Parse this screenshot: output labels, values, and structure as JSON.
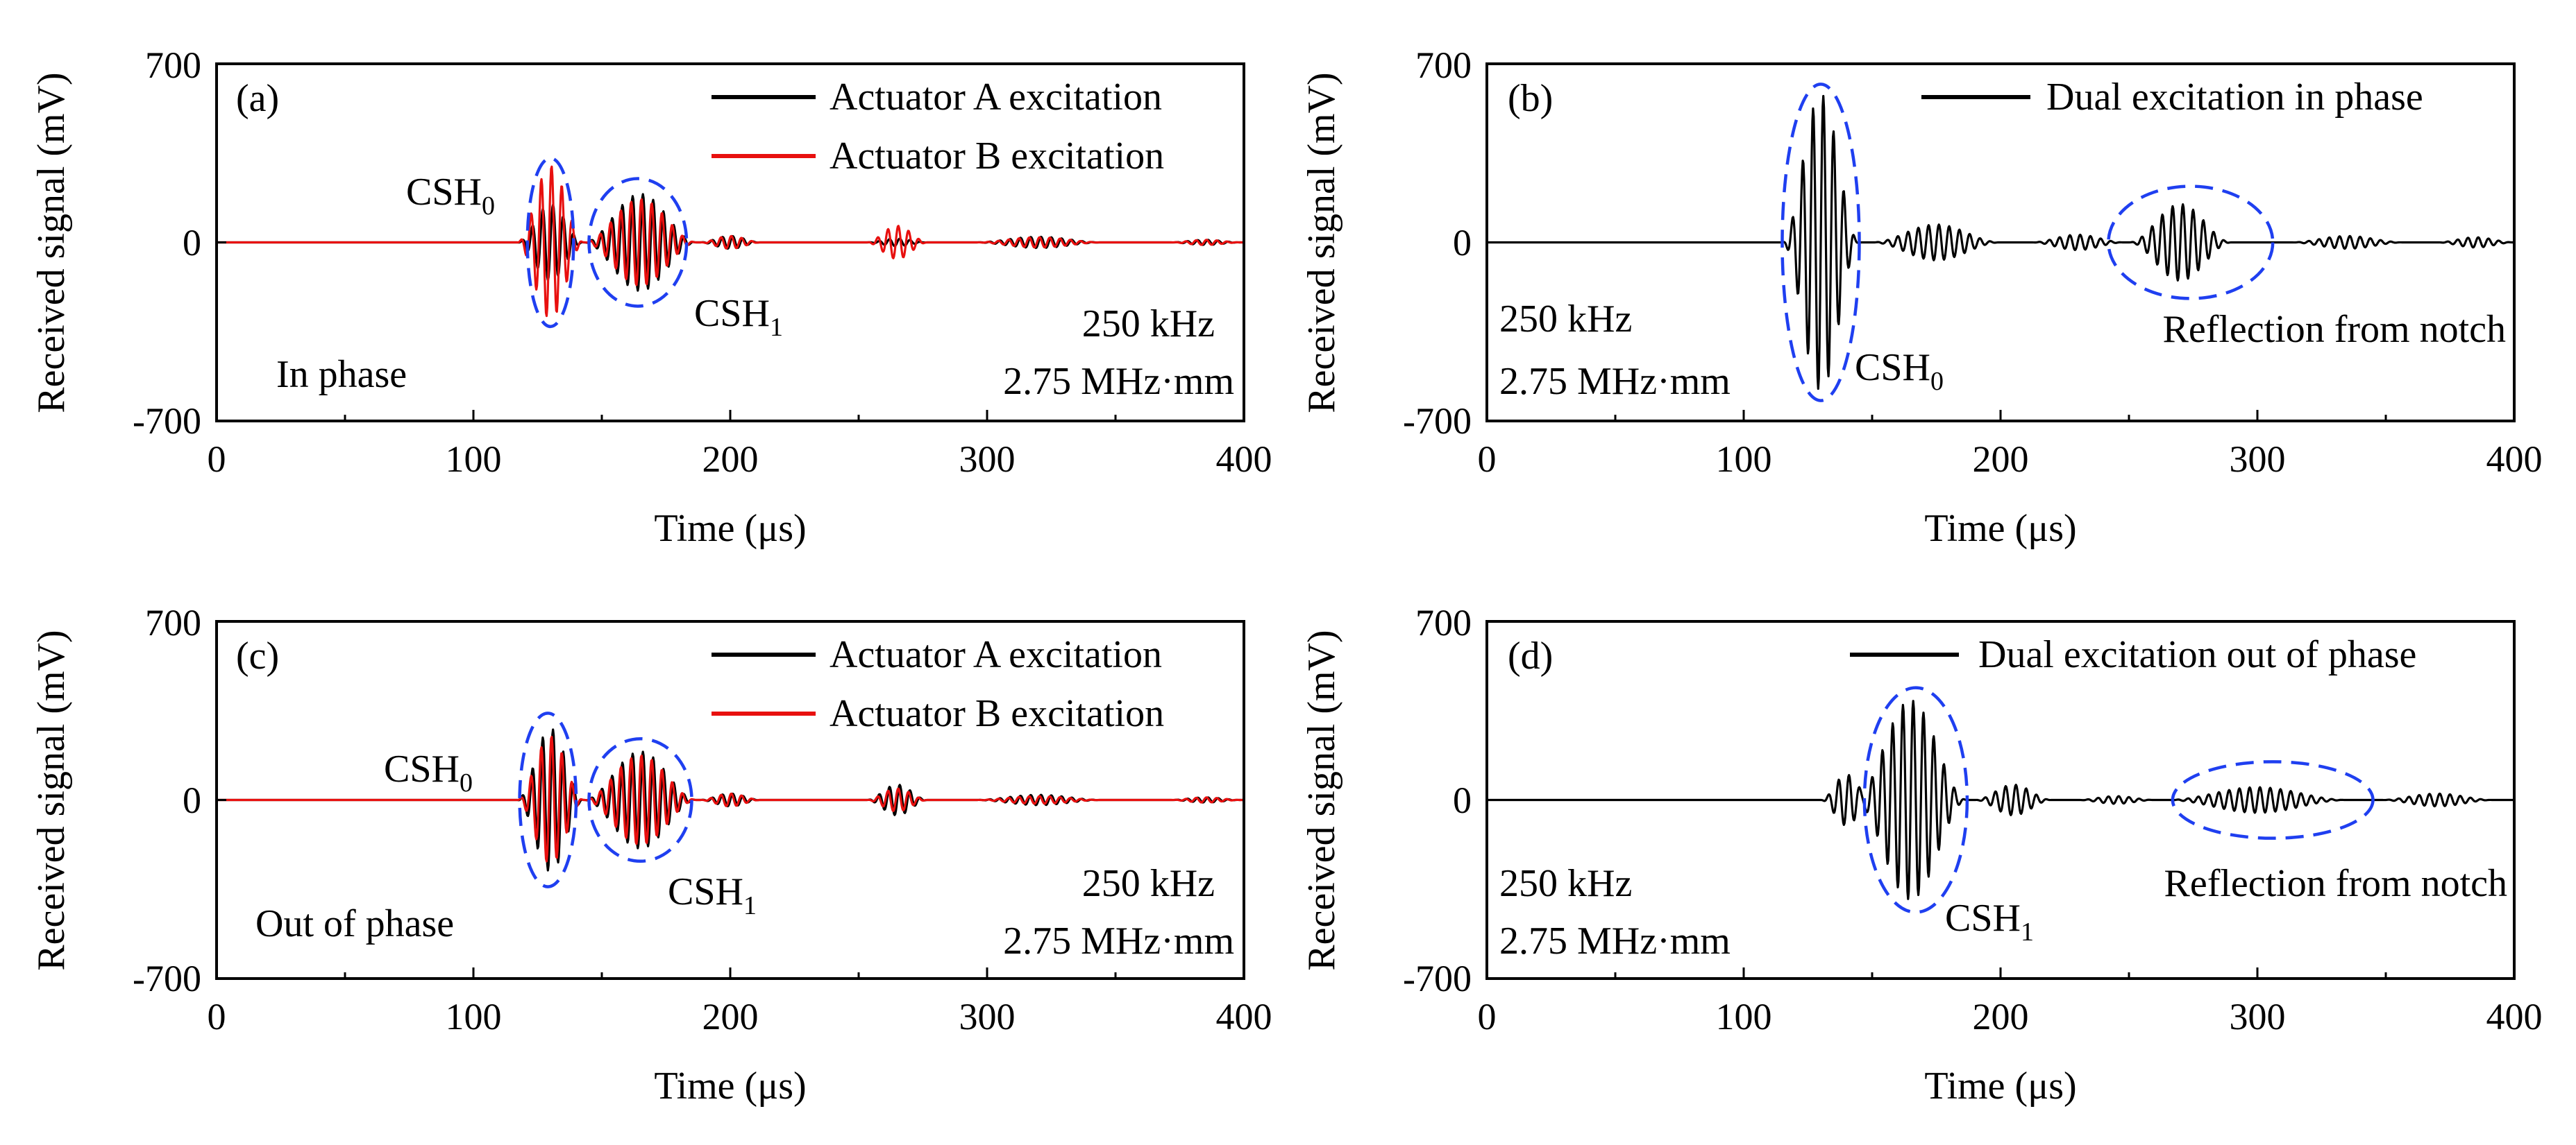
{
  "figure": {
    "description_free": true
  },
  "colors": {
    "actuator_a": "#000000",
    "actuator_b": "#e8100f",
    "highlight": "#1f3ff0",
    "axis": "#000000"
  },
  "chart_data": [
    {
      "panel": "(a)",
      "type": "line",
      "xlabel": "Time (μs)",
      "ylabel": "Received signal (mV)",
      "xlim": [
        0,
        400
      ],
      "ylim": [
        -700,
        700
      ],
      "x_ticks": [
        "0",
        "100",
        "200",
        "300",
        "400"
      ],
      "y_ticks": [
        "700",
        "0",
        "-700"
      ],
      "legend": [
        "Actuator A excitation",
        "Actuator B excitation"
      ],
      "series": [
        {
          "name": "Actuator A excitation",
          "color": "#000000",
          "packets": [
            {
              "center": 130,
              "halfwidth": 13,
              "amp": 150
            },
            {
              "center": 165,
              "halfwidth": 22,
              "amp": 190
            },
            {
              "center": 200,
              "halfwidth": 12,
              "amp": 25
            },
            {
              "center": 265,
              "halfwidth": 12,
              "amp": 15
            },
            {
              "center": 320,
              "halfwidth": 25,
              "amp": 22
            },
            {
              "center": 385,
              "halfwidth": 14,
              "amp": 10
            }
          ]
        },
        {
          "name": "Actuator B excitation",
          "color": "#e8100f",
          "packets": [
            {
              "center": 130,
              "halfwidth": 13,
              "amp": 300
            },
            {
              "center": 165,
              "halfwidth": 22,
              "amp": 170
            },
            {
              "center": 200,
              "halfwidth": 12,
              "amp": 25
            },
            {
              "center": 265,
              "halfwidth": 12,
              "amp": 65
            },
            {
              "center": 320,
              "halfwidth": 25,
              "amp": 20
            },
            {
              "center": 385,
              "halfwidth": 14,
              "amp": 10
            }
          ]
        }
      ],
      "annotations": [
        {
          "main": "CSH",
          "sub": "0"
        },
        {
          "main": "CSH",
          "sub": "1"
        },
        {
          "text": "In phase"
        },
        {
          "text": "250 kHz"
        },
        {
          "text": "2.75 MHz·mm"
        }
      ],
      "ellipses": [
        {
          "center_time": 130,
          "half_time": 9,
          "amp_top": 330,
          "amp_bottom": -330
        },
        {
          "center_time": 164,
          "half_time": 19,
          "amp_top": 250,
          "amp_bottom": -250
        }
      ]
    },
    {
      "panel": "(b)",
      "type": "line",
      "xlabel": "Time (μs)",
      "ylabel": "Received signal (mV)",
      "xlim": [
        0,
        400
      ],
      "ylim": [
        -700,
        700
      ],
      "x_ticks": [
        "0",
        "100",
        "200",
        "300",
        "400"
      ],
      "y_ticks": [
        "700",
        "0",
        "-700"
      ],
      "legend": [
        "Dual excitation in phase"
      ],
      "series": [
        {
          "name": "Dual excitation in phase",
          "color": "#000000",
          "packets": [
            {
              "center": 130,
              "halfwidth": 15,
              "amp": 580
            },
            {
              "center": 175,
              "halfwidth": 25,
              "amp": 70
            },
            {
              "center": 230,
              "halfwidth": 18,
              "amp": 30
            },
            {
              "center": 270,
              "halfwidth": 20,
              "amp": 150
            },
            {
              "center": 335,
              "halfwidth": 22,
              "amp": 25
            },
            {
              "center": 385,
              "halfwidth": 15,
              "amp": 20
            }
          ]
        }
      ],
      "annotations": [
        {
          "main": "CSH",
          "sub": "0"
        },
        {
          "text": "250 kHz"
        },
        {
          "text": "2.75 MHz·mm"
        },
        {
          "text": "Reflection from notch"
        }
      ],
      "ellipses": [
        {
          "center_time": 130,
          "half_time": 15,
          "amp_top": 620,
          "amp_bottom": -620
        },
        {
          "center_time": 274,
          "half_time": 32,
          "amp_top": 220,
          "amp_bottom": -220
        }
      ]
    },
    {
      "panel": "(c)",
      "type": "line",
      "xlabel": "Time (μs)",
      "ylabel": "Received signal (mV)",
      "xlim": [
        0,
        400
      ],
      "ylim": [
        -700,
        700
      ],
      "x_ticks": [
        "0",
        "100",
        "200",
        "300",
        "400"
      ],
      "y_ticks": [
        "700",
        "0",
        "-700"
      ],
      "legend": [
        "Actuator A excitation",
        "Actuator B excitation"
      ],
      "series": [
        {
          "name": "Actuator A excitation",
          "color": "#000000",
          "packets": [
            {
              "center": 130,
              "halfwidth": 13,
              "amp": 280
            },
            {
              "center": 165,
              "halfwidth": 22,
              "amp": 190
            },
            {
              "center": 200,
              "halfwidth": 12,
              "amp": 25
            },
            {
              "center": 265,
              "halfwidth": 12,
              "amp": 60
            },
            {
              "center": 320,
              "halfwidth": 25,
              "amp": 20
            },
            {
              "center": 385,
              "halfwidth": 14,
              "amp": 10
            }
          ]
        },
        {
          "name": "Actuator B excitation",
          "color": "#e8100f",
          "packets": [
            {
              "center": 130,
              "halfwidth": 13,
              "amp": 250
            },
            {
              "center": 165,
              "halfwidth": 22,
              "amp": 175
            },
            {
              "center": 200,
              "halfwidth": 12,
              "amp": 25
            },
            {
              "center": 265,
              "halfwidth": 12,
              "amp": 45
            },
            {
              "center": 320,
              "halfwidth": 25,
              "amp": 15
            },
            {
              "center": 385,
              "halfwidth": 14,
              "amp": 10
            }
          ]
        }
      ],
      "annotations": [
        {
          "main": "CSH",
          "sub": "0"
        },
        {
          "main": "CSH",
          "sub": "1"
        },
        {
          "text": "Out of phase"
        },
        {
          "text": "250 kHz"
        },
        {
          "text": "2.75 MHz·mm"
        }
      ],
      "ellipses": [
        {
          "center_time": 129,
          "half_time": 11,
          "amp_top": 340,
          "amp_bottom": -340
        },
        {
          "center_time": 165,
          "half_time": 20,
          "amp_top": 240,
          "amp_bottom": -240
        }
      ]
    },
    {
      "panel": "(d)",
      "type": "line",
      "xlabel": "Time (μs)",
      "ylabel": "Received signal (mV)",
      "xlim": [
        0,
        400
      ],
      "ylim": [
        -700,
        700
      ],
      "x_ticks": [
        "0",
        "100",
        "200",
        "300",
        "400"
      ],
      "y_ticks": [
        "700",
        "0",
        "-700"
      ],
      "legend": [
        "Dual excitation out of phase"
      ],
      "series": [
        {
          "name": "Dual excitation out of phase",
          "color": "#000000",
          "packets": [
            {
              "center": 140,
              "halfwidth": 10,
              "amp": 100
            },
            {
              "center": 165,
              "halfwidth": 22,
              "amp": 390
            },
            {
              "center": 205,
              "halfwidth": 15,
              "amp": 60
            },
            {
              "center": 245,
              "halfwidth": 15,
              "amp": 15
            },
            {
              "center": 300,
              "halfwidth": 35,
              "amp": 50
            },
            {
              "center": 370,
              "halfwidth": 22,
              "amp": 25
            }
          ]
        }
      ],
      "annotations": [
        {
          "main": "CSH",
          "sub": "1"
        },
        {
          "text": "250 kHz"
        },
        {
          "text": "2.75 MHz·mm"
        },
        {
          "text": "Reflection from notch"
        }
      ],
      "ellipses": [
        {
          "center_time": 167,
          "half_time": 20,
          "amp_top": 440,
          "amp_bottom": -440
        },
        {
          "center_time": 306,
          "half_time": 39,
          "amp_top": 150,
          "amp_bottom": -150
        }
      ]
    }
  ]
}
